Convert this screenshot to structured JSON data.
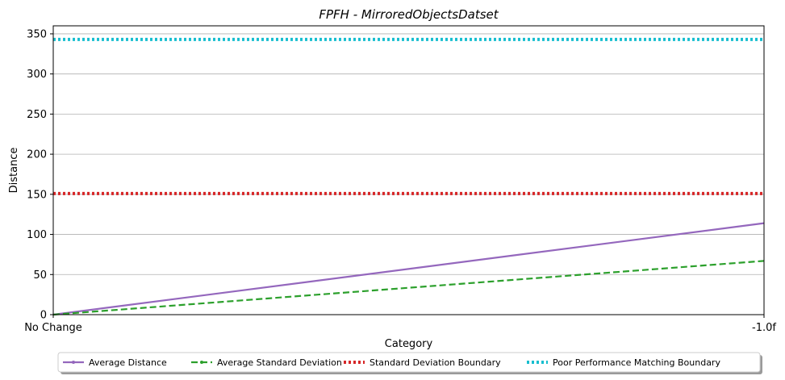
{
  "chart_data": {
    "type": "line",
    "title": "FPFH - MirroredObjectsDatset",
    "xlabel": "Category",
    "ylabel": "Distance",
    "categories": [
      "No Change",
      "-1.0f"
    ],
    "ylim": [
      0,
      360
    ],
    "yticks": [
      0,
      50,
      100,
      150,
      200,
      250,
      300,
      350
    ],
    "grid": "y",
    "legend_position": "bottom",
    "series": [
      {
        "name": "Average Distance",
        "values": [
          0,
          114
        ],
        "color": "#9467bd",
        "style": "solid"
      },
      {
        "name": "Average Standard Deviation",
        "values": [
          0,
          67
        ],
        "color": "#2ca02c",
        "style": "dashed"
      },
      {
        "name": "Standard Deviation Boundary",
        "values": [
          151,
          151
        ],
        "color": "#d62728",
        "style": "dotted"
      },
      {
        "name": "Poor Performance Matching Boundary",
        "values": [
          343,
          343
        ],
        "color": "#17becf",
        "style": "dotted"
      }
    ]
  }
}
